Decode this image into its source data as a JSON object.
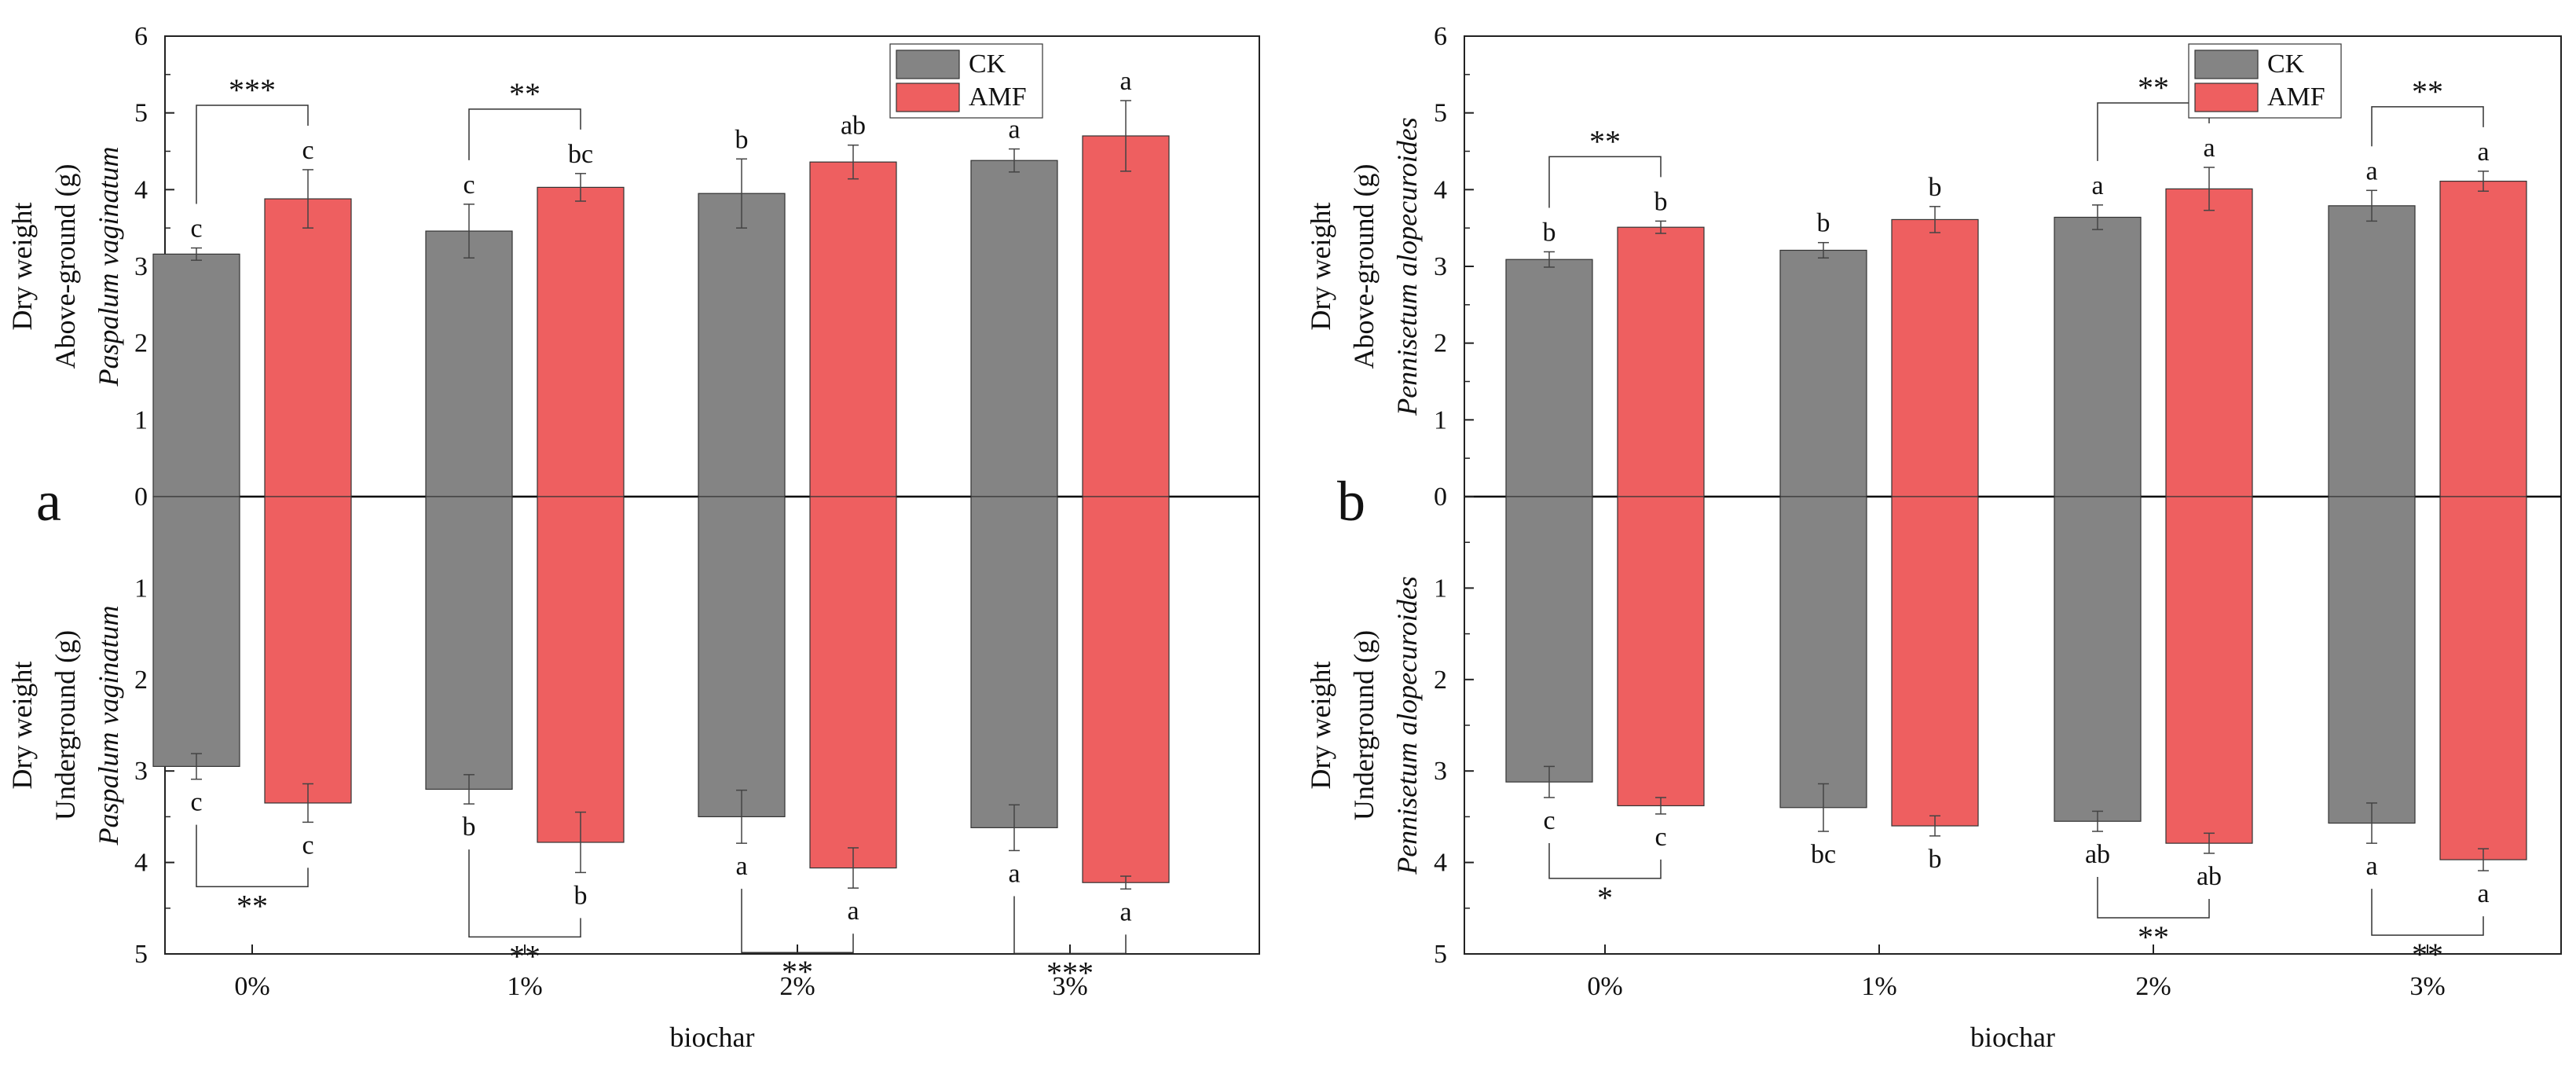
{
  "colors": {
    "ck": "#848484",
    "amf": "#ee5f60",
    "axis": "#222222"
  },
  "chart_data": [
    {
      "type": "bar",
      "panel_label": "a",
      "categories": [
        "0%",
        "1%",
        "2%",
        "3%"
      ],
      "xlabel": "biochar",
      "legend": [
        "CK",
        "AMF"
      ],
      "legend_position": "top-right",
      "upper_axis": {
        "range": [
          0,
          6
        ],
        "ticks": [
          "0",
          "1",
          "2",
          "3",
          "4",
          "5",
          "6"
        ],
        "label_lines": [
          "Dry weight",
          "Above-ground (g)",
          "Paspalum vaginatum"
        ]
      },
      "lower_axis": {
        "range": [
          0,
          5
        ],
        "ticks": [
          "1",
          "2",
          "3",
          "4",
          "5"
        ],
        "label_lines": [
          "Dry weight",
          "Underground (g)",
          "Paspalum vaginatum"
        ]
      },
      "series": [
        {
          "name": "CK",
          "above": [
            3.16,
            3.46,
            3.95,
            4.38
          ],
          "above_err": [
            0.08,
            0.35,
            0.45,
            0.15
          ],
          "below": [
            2.95,
            3.2,
            3.5,
            3.62
          ],
          "below_err": [
            0.14,
            0.16,
            0.29,
            0.25
          ],
          "above_letters": [
            "c",
            "c",
            "b",
            "a"
          ],
          "below_letters": [
            "c",
            "b",
            "a",
            "a"
          ]
        },
        {
          "name": "AMF",
          "above": [
            3.88,
            4.03,
            4.36,
            4.7
          ],
          "above_err": [
            0.38,
            0.18,
            0.22,
            0.46
          ],
          "below": [
            3.35,
            3.78,
            4.06,
            4.22
          ],
          "below_err": [
            0.21,
            0.33,
            0.22,
            0.07
          ],
          "above_letters": [
            "c",
            "bc",
            "ab",
            "a"
          ],
          "below_letters": [
            "c",
            "b",
            "a",
            "a"
          ]
        }
      ],
      "above_significance": [
        "***",
        "**",
        "",
        ""
      ],
      "below_significance": [
        "**",
        "**",
        "**",
        "***"
      ]
    },
    {
      "type": "bar",
      "panel_label": "b",
      "categories": [
        "0%",
        "1%",
        "2%",
        "3%"
      ],
      "xlabel": "biochar",
      "legend": [
        "CK",
        "AMF"
      ],
      "legend_position": "top-right",
      "upper_axis": {
        "range": [
          0,
          6
        ],
        "ticks": [
          "0",
          "1",
          "2",
          "3",
          "4",
          "5",
          "6"
        ],
        "label_lines": [
          "Dry weight",
          "Above-ground (g)",
          "Pennisetum alopecuroides"
        ]
      },
      "lower_axis": {
        "range": [
          0,
          5
        ],
        "ticks": [
          "1",
          "2",
          "3",
          "4",
          "5"
        ],
        "label_lines": [
          "Dry weight",
          "Underground (g)",
          "Pennisetum alopecuroides"
        ]
      },
      "series": [
        {
          "name": "CK",
          "above": [
            3.09,
            3.21,
            3.64,
            3.79
          ],
          "above_err": [
            0.1,
            0.1,
            0.16,
            0.2
          ],
          "below": [
            3.12,
            3.4,
            3.55,
            3.57
          ],
          "below_err": [
            0.17,
            0.26,
            0.11,
            0.22
          ],
          "above_letters": [
            "b",
            "b",
            "a",
            "a"
          ],
          "below_letters": [
            "c",
            "bc",
            "ab",
            "a"
          ]
        },
        {
          "name": "AMF",
          "above": [
            3.51,
            3.61,
            4.01,
            4.11
          ],
          "above_err": [
            0.08,
            0.17,
            0.28,
            0.13
          ],
          "below": [
            3.38,
            3.6,
            3.79,
            3.97
          ],
          "below_err": [
            0.09,
            0.11,
            0.11,
            0.12
          ],
          "above_letters": [
            "b",
            "b",
            "a",
            "a"
          ],
          "below_letters": [
            "c",
            "b",
            "ab",
            "a"
          ]
        }
      ],
      "above_significance": [
        "**",
        "",
        "**",
        "**"
      ],
      "below_significance": [
        "*",
        "",
        "**",
        "**"
      ]
    }
  ]
}
